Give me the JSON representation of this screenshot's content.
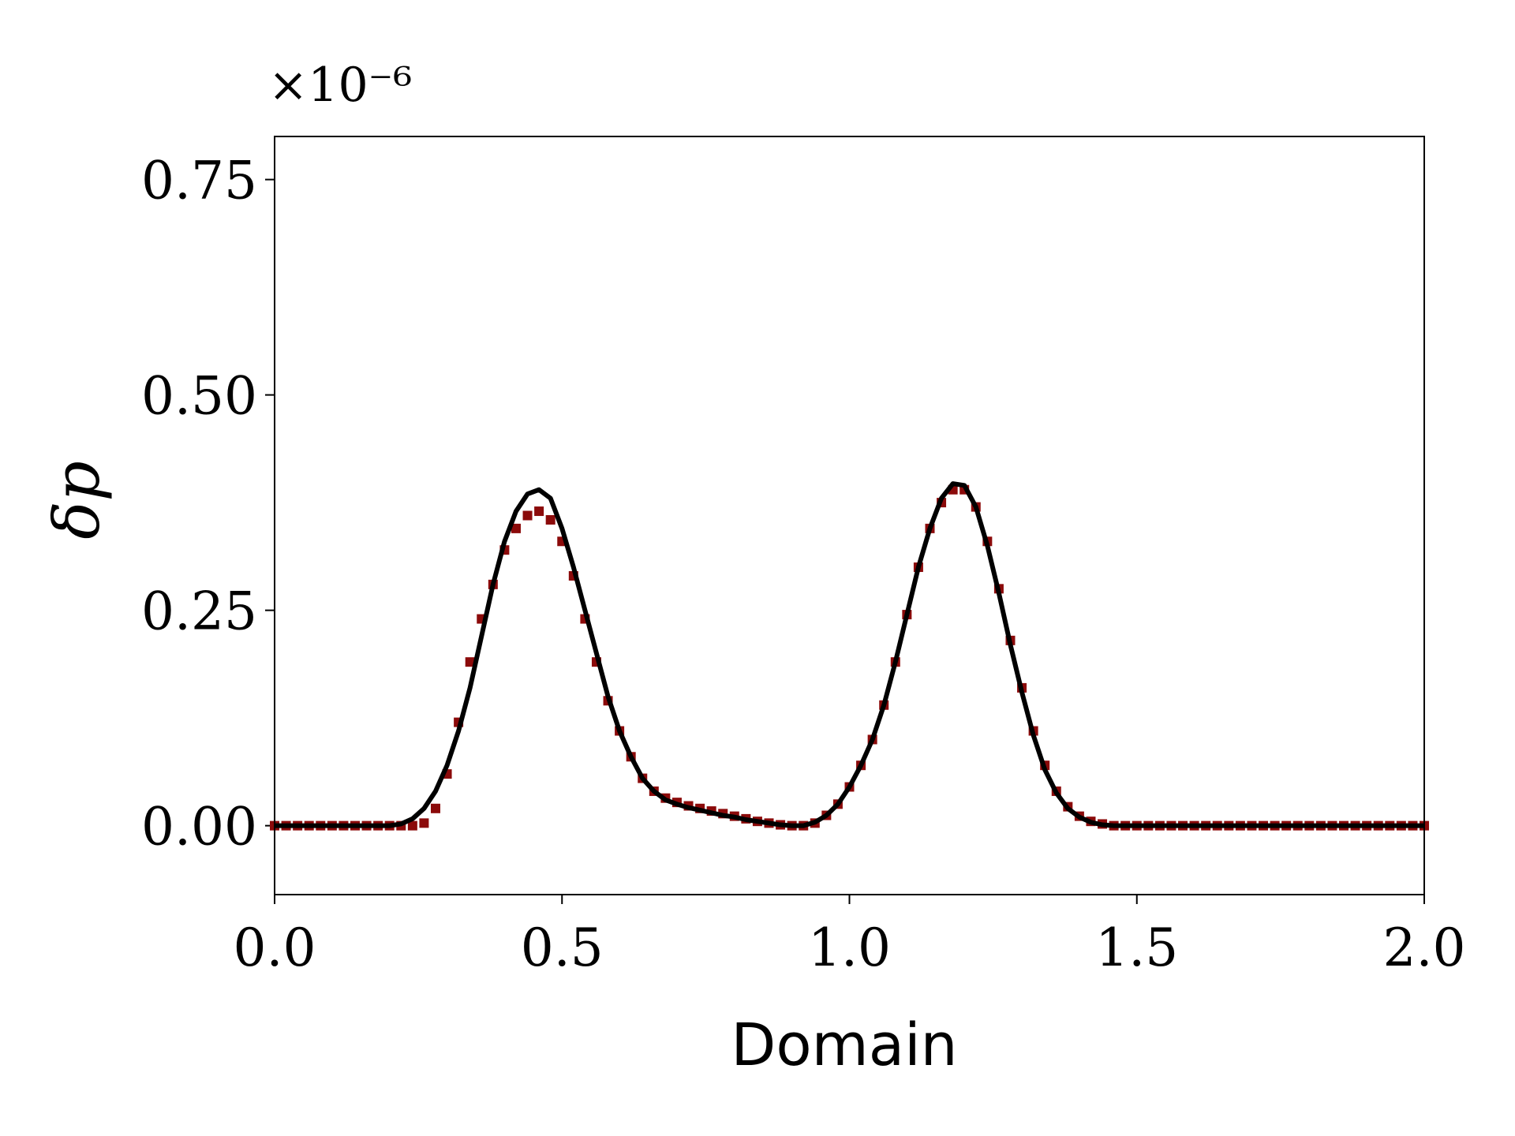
{
  "chart_data": {
    "type": "line",
    "xlabel": "Domain",
    "ylabel": "δp",
    "y_offset_label": "×10⁻⁶",
    "xlim": [
      0,
      2
    ],
    "ylim": [
      -0.08,
      0.8
    ],
    "xticks": [
      {
        "value": 0,
        "label": "0.0"
      },
      0.5,
      {
        "value": 1,
        "label": "1.0"
      },
      1.5,
      {
        "value": 2,
        "label": "2.0"
      }
    ],
    "yticks": [
      {
        "value": 0,
        "label": "0.00"
      },
      0.25,
      {
        "value": 0.5,
        "label": "0.50"
      },
      0.75
    ],
    "x": [
      0,
      0.02,
      0.04,
      0.06,
      0.08,
      0.1,
      0.12,
      0.14,
      0.16,
      0.18,
      0.2,
      0.22,
      0.24,
      0.26,
      0.28,
      0.3,
      0.32,
      0.34,
      0.36,
      0.38,
      0.4,
      0.42,
      0.44,
      0.46,
      0.48,
      0.5,
      0.52,
      0.54,
      0.56,
      0.58,
      0.6,
      0.62,
      0.64,
      0.66,
      0.68,
      0.7,
      0.72,
      0.74,
      0.76,
      0.78,
      0.8,
      0.82,
      0.84,
      0.86,
      0.88,
      0.9,
      0.92,
      0.94,
      0.96,
      0.98,
      1,
      1.02,
      1.04,
      1.06,
      1.08,
      1.1,
      1.12,
      1.14,
      1.16,
      1.18,
      1.2,
      1.22,
      1.24,
      1.26,
      1.28,
      1.3,
      1.32,
      1.34,
      1.36,
      1.38,
      1.4,
      1.42,
      1.44,
      1.46,
      1.48,
      1.5,
      1.52,
      1.54,
      1.56,
      1.58,
      1.6,
      1.62,
      1.64,
      1.66,
      1.68,
      1.7,
      1.72,
      1.74,
      1.76,
      1.78,
      1.8,
      1.82,
      1.84,
      1.86,
      1.88,
      1.9,
      1.92,
      1.94,
      1.96,
      1.98,
      2
    ],
    "series": [
      {
        "color": "#8b0a0a",
        "marker": "square",
        "linestyle": "none",
        "values": [
          0,
          0,
          0,
          0,
          0,
          0,
          0,
          0,
          0,
          0,
          0,
          0,
          0,
          0.003,
          0.02,
          0.06,
          0.12,
          0.19,
          0.24,
          0.28,
          0.32,
          0.345,
          0.36,
          0.365,
          0.355,
          0.33,
          0.29,
          0.24,
          0.19,
          0.145,
          0.11,
          0.08,
          0.055,
          0.04,
          0.032,
          0.027,
          0.023,
          0.02,
          0.017,
          0.014,
          0.011,
          0.008,
          0.005,
          0.003,
          0.001,
          0,
          0,
          0.003,
          0.012,
          0.025,
          0.045,
          0.07,
          0.1,
          0.14,
          0.19,
          0.245,
          0.3,
          0.345,
          0.375,
          0.39,
          0.39,
          0.37,
          0.33,
          0.275,
          0.215,
          0.16,
          0.11,
          0.07,
          0.04,
          0.022,
          0.011,
          0.005,
          0.002,
          0,
          0,
          0,
          0,
          0,
          0,
          0,
          0,
          0,
          0,
          0,
          0,
          0,
          0,
          0,
          0,
          0,
          0,
          0,
          0,
          0,
          0,
          0,
          0,
          0,
          0,
          0,
          0
        ]
      },
      {
        "color": "#000000",
        "marker": "none",
        "linestyle": "solid",
        "values": [
          0,
          0,
          0,
          0,
          0,
          0,
          0,
          0,
          0,
          0,
          0,
          0.002,
          0.008,
          0.02,
          0.04,
          0.07,
          0.11,
          0.16,
          0.22,
          0.28,
          0.33,
          0.365,
          0.385,
          0.39,
          0.38,
          0.345,
          0.3,
          0.25,
          0.2,
          0.15,
          0.11,
          0.08,
          0.055,
          0.04,
          0.03,
          0.025,
          0.021,
          0.018,
          0.015,
          0.012,
          0.01,
          0.007,
          0.005,
          0.003,
          0.001,
          0,
          0,
          0.004,
          0.012,
          0.025,
          0.045,
          0.07,
          0.1,
          0.14,
          0.19,
          0.245,
          0.3,
          0.345,
          0.38,
          0.397,
          0.395,
          0.37,
          0.325,
          0.27,
          0.21,
          0.155,
          0.105,
          0.065,
          0.038,
          0.02,
          0.01,
          0.004,
          0.001,
          0,
          0,
          0,
          0,
          0,
          0,
          0,
          0,
          0,
          0,
          0,
          0,
          0,
          0,
          0,
          0,
          0,
          0,
          0,
          0,
          0,
          0,
          0,
          0,
          0,
          0,
          0,
          0
        ]
      }
    ]
  }
}
